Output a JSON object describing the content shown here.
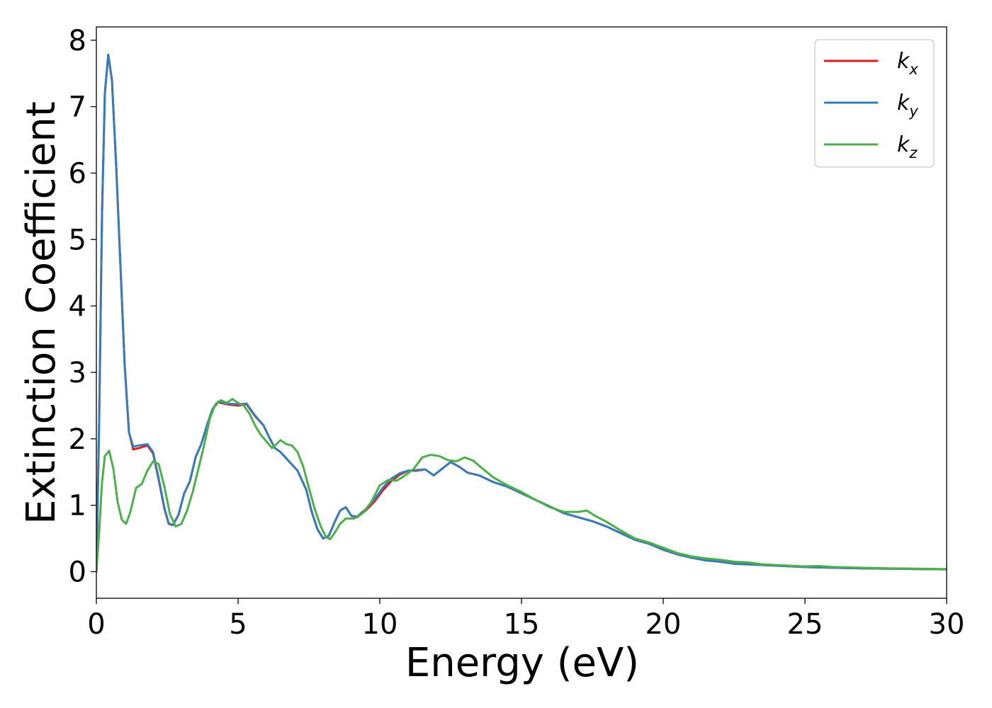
{
  "chart_data": {
    "type": "line",
    "title": "",
    "xlabel": "Energy (eV)",
    "ylabel": "Extinction Coefficient",
    "xlim": [
      0,
      30
    ],
    "ylim": [
      -0.4,
      8.2
    ],
    "xticks": [
      0,
      5,
      10,
      15,
      20,
      25,
      30
    ],
    "yticks": [
      0,
      1,
      2,
      3,
      4,
      5,
      6,
      7,
      8
    ],
    "grid": false,
    "legend_position": "top-right",
    "series": [
      {
        "key": "kx",
        "name": "k",
        "subscript": "x",
        "color": "#e41a1c",
        "points": [
          [
            0,
            0
          ],
          [
            0.1,
            2.3
          ],
          [
            0.2,
            5.4
          ],
          [
            0.3,
            7.2
          ],
          [
            0.42,
            7.78
          ],
          [
            0.55,
            7.4
          ],
          [
            0.7,
            6.1
          ],
          [
            0.85,
            4.6
          ],
          [
            1.0,
            3.1
          ],
          [
            1.15,
            2.1
          ],
          [
            1.3,
            1.84
          ],
          [
            1.5,
            1.86
          ],
          [
            1.8,
            1.9
          ],
          [
            2.0,
            1.78
          ],
          [
            2.2,
            1.38
          ],
          [
            2.4,
            0.95
          ],
          [
            2.55,
            0.72
          ],
          [
            2.7,
            0.7
          ],
          [
            2.9,
            0.86
          ],
          [
            3.1,
            1.18
          ],
          [
            3.3,
            1.36
          ],
          [
            3.5,
            1.72
          ],
          [
            3.7,
            1.92
          ],
          [
            3.9,
            2.2
          ],
          [
            4.1,
            2.45
          ],
          [
            4.3,
            2.55
          ],
          [
            4.6,
            2.52
          ],
          [
            5.0,
            2.5
          ],
          [
            5.3,
            2.52
          ],
          [
            5.6,
            2.34
          ],
          [
            5.9,
            2.2
          ],
          [
            6.1,
            2.02
          ],
          [
            6.3,
            1.86
          ],
          [
            6.5,
            1.8
          ],
          [
            6.8,
            1.66
          ],
          [
            7.1,
            1.52
          ],
          [
            7.4,
            1.24
          ],
          [
            7.6,
            0.9
          ],
          [
            7.8,
            0.64
          ],
          [
            8.0,
            0.5
          ],
          [
            8.2,
            0.54
          ],
          [
            8.4,
            0.74
          ],
          [
            8.6,
            0.92
          ],
          [
            8.8,
            0.97
          ],
          [
            9.0,
            0.84
          ],
          [
            9.2,
            0.82
          ],
          [
            9.5,
            0.92
          ],
          [
            9.8,
            1.05
          ],
          [
            10.1,
            1.22
          ],
          [
            10.4,
            1.36
          ],
          [
            10.7,
            1.46
          ],
          [
            11.0,
            1.52
          ],
          [
            11.3,
            1.52
          ],
          [
            11.6,
            1.54
          ],
          [
            11.9,
            1.45
          ],
          [
            12.2,
            1.55
          ],
          [
            12.5,
            1.65
          ],
          [
            12.8,
            1.58
          ],
          [
            13.1,
            1.49
          ],
          [
            13.5,
            1.45
          ],
          [
            14.0,
            1.35
          ],
          [
            14.5,
            1.28
          ],
          [
            15.0,
            1.18
          ],
          [
            15.5,
            1.08
          ],
          [
            16.0,
            0.98
          ],
          [
            16.5,
            0.88
          ],
          [
            17.0,
            0.82
          ],
          [
            17.5,
            0.76
          ],
          [
            18.0,
            0.68
          ],
          [
            18.5,
            0.58
          ],
          [
            19.0,
            0.48
          ],
          [
            19.5,
            0.42
          ],
          [
            20.0,
            0.33
          ],
          [
            20.5,
            0.26
          ],
          [
            21.0,
            0.21
          ],
          [
            21.5,
            0.17
          ],
          [
            22.0,
            0.15
          ],
          [
            22.5,
            0.12
          ],
          [
            23.0,
            0.11
          ],
          [
            24.0,
            0.09
          ],
          [
            25.0,
            0.07
          ],
          [
            26.0,
            0.06
          ],
          [
            27.0,
            0.05
          ],
          [
            28.0,
            0.045
          ],
          [
            29.0,
            0.04
          ],
          [
            30.0,
            0.035
          ]
        ]
      },
      {
        "key": "ky",
        "name": "k",
        "subscript": "y",
        "color": "#377eb8",
        "points": [
          [
            0,
            0
          ],
          [
            0.1,
            2.3
          ],
          [
            0.2,
            5.4
          ],
          [
            0.3,
            7.2
          ],
          [
            0.42,
            7.78
          ],
          [
            0.55,
            7.4
          ],
          [
            0.7,
            6.1
          ],
          [
            0.85,
            4.6
          ],
          [
            1.0,
            3.1
          ],
          [
            1.15,
            2.1
          ],
          [
            1.3,
            1.88
          ],
          [
            1.5,
            1.9
          ],
          [
            1.8,
            1.92
          ],
          [
            2.0,
            1.8
          ],
          [
            2.2,
            1.4
          ],
          [
            2.4,
            0.96
          ],
          [
            2.55,
            0.73
          ],
          [
            2.7,
            0.7
          ],
          [
            2.9,
            0.86
          ],
          [
            3.1,
            1.18
          ],
          [
            3.3,
            1.36
          ],
          [
            3.5,
            1.72
          ],
          [
            3.7,
            1.92
          ],
          [
            3.9,
            2.2
          ],
          [
            4.1,
            2.45
          ],
          [
            4.3,
            2.56
          ],
          [
            4.6,
            2.53
          ],
          [
            5.0,
            2.52
          ],
          [
            5.3,
            2.53
          ],
          [
            5.6,
            2.35
          ],
          [
            5.9,
            2.2
          ],
          [
            6.1,
            2.02
          ],
          [
            6.3,
            1.86
          ],
          [
            6.5,
            1.8
          ],
          [
            6.8,
            1.66
          ],
          [
            7.1,
            1.52
          ],
          [
            7.4,
            1.24
          ],
          [
            7.6,
            0.9
          ],
          [
            7.8,
            0.64
          ],
          [
            8.0,
            0.5
          ],
          [
            8.2,
            0.54
          ],
          [
            8.4,
            0.74
          ],
          [
            8.6,
            0.92
          ],
          [
            8.8,
            0.97
          ],
          [
            9.0,
            0.84
          ],
          [
            9.2,
            0.83
          ],
          [
            9.5,
            0.94
          ],
          [
            9.8,
            1.08
          ],
          [
            10.1,
            1.26
          ],
          [
            10.4,
            1.4
          ],
          [
            10.7,
            1.48
          ],
          [
            11.0,
            1.52
          ],
          [
            11.3,
            1.53
          ],
          [
            11.6,
            1.54
          ],
          [
            11.9,
            1.45
          ],
          [
            12.2,
            1.55
          ],
          [
            12.5,
            1.65
          ],
          [
            12.8,
            1.58
          ],
          [
            13.1,
            1.49
          ],
          [
            13.5,
            1.45
          ],
          [
            14.0,
            1.35
          ],
          [
            14.5,
            1.28
          ],
          [
            15.0,
            1.18
          ],
          [
            15.5,
            1.08
          ],
          [
            16.0,
            0.98
          ],
          [
            16.5,
            0.88
          ],
          [
            17.0,
            0.82
          ],
          [
            17.5,
            0.76
          ],
          [
            18.0,
            0.68
          ],
          [
            18.5,
            0.58
          ],
          [
            19.0,
            0.48
          ],
          [
            19.5,
            0.42
          ],
          [
            20.0,
            0.33
          ],
          [
            20.5,
            0.26
          ],
          [
            21.0,
            0.21
          ],
          [
            21.5,
            0.17
          ],
          [
            22.0,
            0.15
          ],
          [
            22.5,
            0.12
          ],
          [
            23.0,
            0.11
          ],
          [
            24.0,
            0.09
          ],
          [
            25.0,
            0.07
          ],
          [
            26.0,
            0.06
          ],
          [
            27.0,
            0.05
          ],
          [
            28.0,
            0.045
          ],
          [
            29.0,
            0.04
          ],
          [
            30.0,
            0.035
          ]
        ]
      },
      {
        "key": "kz",
        "name": "k",
        "subscript": "z",
        "color": "#4daf4a",
        "points": [
          [
            0,
            0
          ],
          [
            0.1,
            0.6
          ],
          [
            0.2,
            1.35
          ],
          [
            0.3,
            1.74
          ],
          [
            0.45,
            1.82
          ],
          [
            0.6,
            1.55
          ],
          [
            0.75,
            1.05
          ],
          [
            0.9,
            0.78
          ],
          [
            1.05,
            0.72
          ],
          [
            1.2,
            0.9
          ],
          [
            1.4,
            1.26
          ],
          [
            1.6,
            1.32
          ],
          [
            1.8,
            1.52
          ],
          [
            2.0,
            1.66
          ],
          [
            2.2,
            1.62
          ],
          [
            2.4,
            1.28
          ],
          [
            2.6,
            0.86
          ],
          [
            2.8,
            0.68
          ],
          [
            3.0,
            0.72
          ],
          [
            3.2,
            0.92
          ],
          [
            3.4,
            1.2
          ],
          [
            3.6,
            1.55
          ],
          [
            3.8,
            1.9
          ],
          [
            4.0,
            2.3
          ],
          [
            4.2,
            2.52
          ],
          [
            4.4,
            2.58
          ],
          [
            4.6,
            2.54
          ],
          [
            4.8,
            2.6
          ],
          [
            5.0,
            2.54
          ],
          [
            5.2,
            2.5
          ],
          [
            5.4,
            2.38
          ],
          [
            5.6,
            2.2
          ],
          [
            5.8,
            2.06
          ],
          [
            6.0,
            1.96
          ],
          [
            6.2,
            1.86
          ],
          [
            6.5,
            1.98
          ],
          [
            6.7,
            1.92
          ],
          [
            6.9,
            1.9
          ],
          [
            7.1,
            1.8
          ],
          [
            7.3,
            1.58
          ],
          [
            7.5,
            1.26
          ],
          [
            7.7,
            0.95
          ],
          [
            7.9,
            0.7
          ],
          [
            8.1,
            0.52
          ],
          [
            8.25,
            0.49
          ],
          [
            8.4,
            0.58
          ],
          [
            8.6,
            0.72
          ],
          [
            8.8,
            0.8
          ],
          [
            9.1,
            0.8
          ],
          [
            9.4,
            0.88
          ],
          [
            9.7,
            1.05
          ],
          [
            10.0,
            1.3
          ],
          [
            10.3,
            1.38
          ],
          [
            10.6,
            1.37
          ],
          [
            10.9,
            1.45
          ],
          [
            11.2,
            1.55
          ],
          [
            11.5,
            1.72
          ],
          [
            11.8,
            1.76
          ],
          [
            12.1,
            1.74
          ],
          [
            12.4,
            1.68
          ],
          [
            12.7,
            1.66
          ],
          [
            13.0,
            1.72
          ],
          [
            13.3,
            1.67
          ],
          [
            13.6,
            1.56
          ],
          [
            14.0,
            1.42
          ],
          [
            14.5,
            1.3
          ],
          [
            15.0,
            1.2
          ],
          [
            15.5,
            1.08
          ],
          [
            16.0,
            0.97
          ],
          [
            16.5,
            0.9
          ],
          [
            17.0,
            0.9
          ],
          [
            17.3,
            0.92
          ],
          [
            17.6,
            0.84
          ],
          [
            18.0,
            0.75
          ],
          [
            18.5,
            0.62
          ],
          [
            19.0,
            0.5
          ],
          [
            19.5,
            0.44
          ],
          [
            20.0,
            0.36
          ],
          [
            20.5,
            0.28
          ],
          [
            21.0,
            0.23
          ],
          [
            21.5,
            0.2
          ],
          [
            22.0,
            0.18
          ],
          [
            22.5,
            0.15
          ],
          [
            23.0,
            0.14
          ],
          [
            23.5,
            0.11
          ],
          [
            24.0,
            0.1
          ],
          [
            25.0,
            0.08
          ],
          [
            25.5,
            0.085
          ],
          [
            26.0,
            0.07
          ],
          [
            27.0,
            0.06
          ],
          [
            28.0,
            0.05
          ],
          [
            29.0,
            0.045
          ],
          [
            30.0,
            0.04
          ]
        ]
      }
    ]
  }
}
